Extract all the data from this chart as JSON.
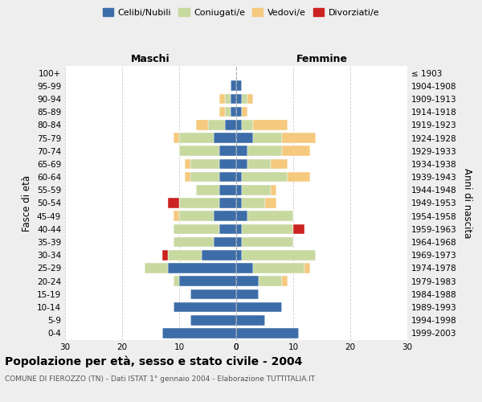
{
  "age_groups": [
    "0-4",
    "5-9",
    "10-14",
    "15-19",
    "20-24",
    "25-29",
    "30-34",
    "35-39",
    "40-44",
    "45-49",
    "50-54",
    "55-59",
    "60-64",
    "65-69",
    "70-74",
    "75-79",
    "80-84",
    "85-89",
    "90-94",
    "95-99",
    "100+"
  ],
  "birth_years": [
    "1999-2003",
    "1994-1998",
    "1989-1993",
    "1984-1988",
    "1979-1983",
    "1974-1978",
    "1969-1973",
    "1964-1968",
    "1959-1963",
    "1954-1958",
    "1949-1953",
    "1944-1948",
    "1939-1943",
    "1934-1938",
    "1929-1933",
    "1924-1928",
    "1919-1923",
    "1914-1918",
    "1909-1913",
    "1904-1908",
    "≤ 1903"
  ],
  "maschi": {
    "celibi": [
      13,
      8,
      11,
      8,
      10,
      12,
      6,
      4,
      3,
      4,
      3,
      3,
      3,
      3,
      3,
      4,
      2,
      1,
      1,
      1,
      0
    ],
    "coniugati": [
      0,
      0,
      0,
      0,
      1,
      4,
      6,
      7,
      8,
      6,
      7,
      4,
      5,
      5,
      7,
      6,
      3,
      1,
      1,
      0,
      0
    ],
    "vedovi": [
      0,
      0,
      0,
      0,
      0,
      0,
      0,
      0,
      0,
      1,
      0,
      0,
      1,
      1,
      0,
      1,
      2,
      1,
      1,
      0,
      0
    ],
    "divorziati": [
      0,
      0,
      0,
      0,
      0,
      0,
      1,
      0,
      0,
      0,
      2,
      0,
      0,
      0,
      0,
      0,
      0,
      0,
      0,
      0,
      0
    ]
  },
  "femmine": {
    "nubili": [
      11,
      5,
      8,
      4,
      4,
      3,
      1,
      1,
      1,
      2,
      1,
      1,
      1,
      2,
      2,
      3,
      1,
      1,
      1,
      1,
      0
    ],
    "coniugate": [
      0,
      0,
      0,
      0,
      4,
      9,
      13,
      9,
      9,
      8,
      4,
      5,
      8,
      4,
      6,
      5,
      2,
      0,
      1,
      0,
      0
    ],
    "vedove": [
      0,
      0,
      0,
      0,
      1,
      1,
      0,
      0,
      0,
      0,
      2,
      1,
      4,
      3,
      5,
      6,
      6,
      1,
      1,
      0,
      0
    ],
    "divorziate": [
      0,
      0,
      0,
      0,
      0,
      0,
      0,
      0,
      2,
      0,
      0,
      0,
      0,
      0,
      0,
      0,
      0,
      0,
      0,
      0,
      0
    ]
  },
  "colors": {
    "celibi": "#3d6da8",
    "coniugati": "#c8d9a0",
    "vedovi": "#f5c97e",
    "divorziati": "#cc2222"
  },
  "xlim": 30,
  "title": "Popolazione per età, sesso e stato civile - 2004",
  "subtitle": "COMUNE DI FIEROZZO (TN) - Dati ISTAT 1° gennaio 2004 - Elaborazione TUTTITALIA.IT",
  "ylabel_left": "Fasce di età",
  "ylabel_right": "Anni di nascita",
  "xlabel_left": "Maschi",
  "xlabel_right": "Femmine",
  "bg_color": "#eeeeee",
  "plot_bg": "#ffffff",
  "grid_color": "#cccccc",
  "legend_labels": [
    "Celibi/Nubili",
    "Coniugati/e",
    "Vedovi/e",
    "Divorziati/e"
  ]
}
